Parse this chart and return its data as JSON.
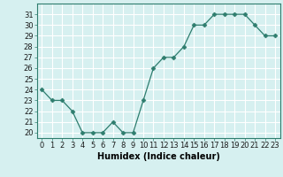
{
  "x": [
    0,
    1,
    2,
    3,
    4,
    5,
    6,
    7,
    8,
    9,
    10,
    11,
    12,
    13,
    14,
    15,
    16,
    17,
    18,
    19,
    20,
    21,
    22,
    23
  ],
  "y": [
    24,
    23,
    23,
    22,
    20,
    20,
    20,
    21,
    20,
    20,
    23,
    26,
    27,
    27,
    28,
    30,
    30,
    31,
    31,
    31,
    31,
    30,
    29,
    29
  ],
  "line_color": "#2e7d6e",
  "marker": "D",
  "marker_size": 2.5,
  "bg_color": "#d6f0f0",
  "grid_color": "#ffffff",
  "xlabel": "Humidex (Indice chaleur)",
  "xlabel_fontsize": 7,
  "tick_fontsize": 6,
  "ylim": [
    19.5,
    32
  ],
  "xlim": [
    -0.5,
    23.5
  ],
  "yticks": [
    20,
    21,
    22,
    23,
    24,
    25,
    26,
    27,
    28,
    29,
    30,
    31
  ],
  "xticks": [
    0,
    1,
    2,
    3,
    4,
    5,
    6,
    7,
    8,
    9,
    10,
    11,
    12,
    13,
    14,
    15,
    16,
    17,
    18,
    19,
    20,
    21,
    22,
    23
  ]
}
